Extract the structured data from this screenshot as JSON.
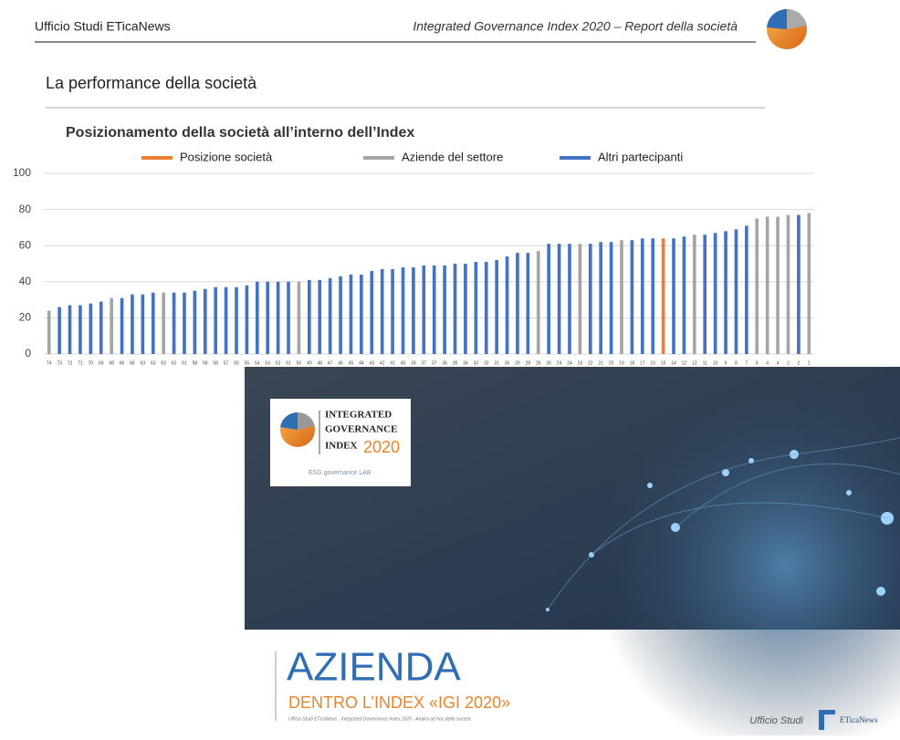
{
  "header": {
    "left": "Ufficio Studi ETicaNews",
    "right": "Integrated Governance Index 2020 – Report della società"
  },
  "section_title": "La performance della società",
  "chart_data": {
    "type": "bar",
    "title": "Posizionamento della società all’interno dell’Index",
    "legend": [
      {
        "name": "Posizione società",
        "color": "#ed7d31"
      },
      {
        "name": "Aziende del settore",
        "color": "#a5a5a5"
      },
      {
        "name": "Altri partecipanti",
        "color": "#4472c4"
      }
    ],
    "categories": [
      "74",
      "73",
      "72",
      "71",
      "70",
      "69",
      "68",
      "66",
      "66",
      "63",
      "63",
      "63",
      "62",
      "61",
      "58",
      "58",
      "58",
      "57",
      "55",
      "55",
      "54",
      "53",
      "52",
      "51",
      "50",
      "49",
      "48",
      "47",
      "46",
      "45",
      "44",
      "43",
      "42",
      "41",
      "40",
      "39",
      "37",
      "37",
      "36",
      "35",
      "34",
      "33",
      "32",
      "31",
      "30",
      "29",
      "28",
      "26",
      "26",
      "24",
      "24",
      "23",
      "22",
      "21",
      "20",
      "19",
      "18",
      "17",
      "15",
      "15",
      "14",
      "12",
      "12",
      "11",
      "10",
      "9",
      "8",
      "7",
      "6",
      "4",
      "4",
      "2",
      "2",
      "1"
    ],
    "values": [
      24,
      26,
      27,
      27,
      28,
      29,
      31,
      31,
      33,
      33,
      34,
      34,
      34,
      34,
      35,
      36,
      37,
      37,
      37,
      38,
      40,
      40,
      40,
      40,
      40,
      41,
      41,
      42,
      43,
      44,
      44,
      46,
      47,
      47,
      48,
      48,
      49,
      49,
      49,
      50,
      50,
      51,
      51,
      52,
      54,
      56,
      56,
      57,
      61,
      61,
      61,
      61,
      61,
      62,
      62,
      63,
      63,
      64,
      64,
      64,
      64,
      65,
      66,
      66,
      67,
      68,
      69,
      71,
      75,
      76,
      76,
      77,
      77,
      78
    ],
    "colors": [
      "#a5a5a5",
      "#4472c4",
      "#4472c4",
      "#4472c4",
      "#4472c4",
      "#4472c4",
      "#a5a5a5",
      "#4472c4",
      "#4472c4",
      "#4472c4",
      "#4472c4",
      "#a5a5a5",
      "#4472c4",
      "#4472c4",
      "#4472c4",
      "#4472c4",
      "#4472c4",
      "#4472c4",
      "#4472c4",
      "#4472c4",
      "#4472c4",
      "#4472c4",
      "#4472c4",
      "#4472c4",
      "#a5a5a5",
      "#4472c4",
      "#4472c4",
      "#4472c4",
      "#4472c4",
      "#4472c4",
      "#4472c4",
      "#4472c4",
      "#4472c4",
      "#4472c4",
      "#4472c4",
      "#4472c4",
      "#4472c4",
      "#4472c4",
      "#4472c4",
      "#4472c4",
      "#4472c4",
      "#4472c4",
      "#4472c4",
      "#4472c4",
      "#4472c4",
      "#4472c4",
      "#4472c4",
      "#a5a5a5",
      "#4472c4",
      "#4472c4",
      "#4472c4",
      "#a5a5a5",
      "#4472c4",
      "#4472c4",
      "#4472c4",
      "#a5a5a5",
      "#4472c4",
      "#4472c4",
      "#4472c4",
      "#ed7d31",
      "#4472c4",
      "#4472c4",
      "#a5a5a5",
      "#4472c4",
      "#4472c4",
      "#4472c4",
      "#4472c4",
      "#4472c4",
      "#a5a5a5",
      "#a5a5a5",
      "#a5a5a5",
      "#a5a5a5",
      "#4472c4",
      "#a5a5a5"
    ],
    "ylim": [
      0,
      100
    ],
    "yticks": [
      0,
      20,
      40,
      60,
      80,
      100
    ],
    "grid": true
  },
  "cover": {
    "logo_lines": [
      "INTEGRATED",
      "GOVERNANCE",
      "INDEX"
    ],
    "logo_year": "2020",
    "logo_lab": "ESG governance LAB",
    "title": "AZIENDA",
    "subtitle": "DENTRO L’INDEX «IGI 2020»",
    "footnote": "Ufficio Studi ETicaNews · Integrated Governance Index 2020 · Analisi ad hoc della società",
    "footer_left": "Ufficio Studi",
    "footer_brand": "ETicaNews"
  }
}
